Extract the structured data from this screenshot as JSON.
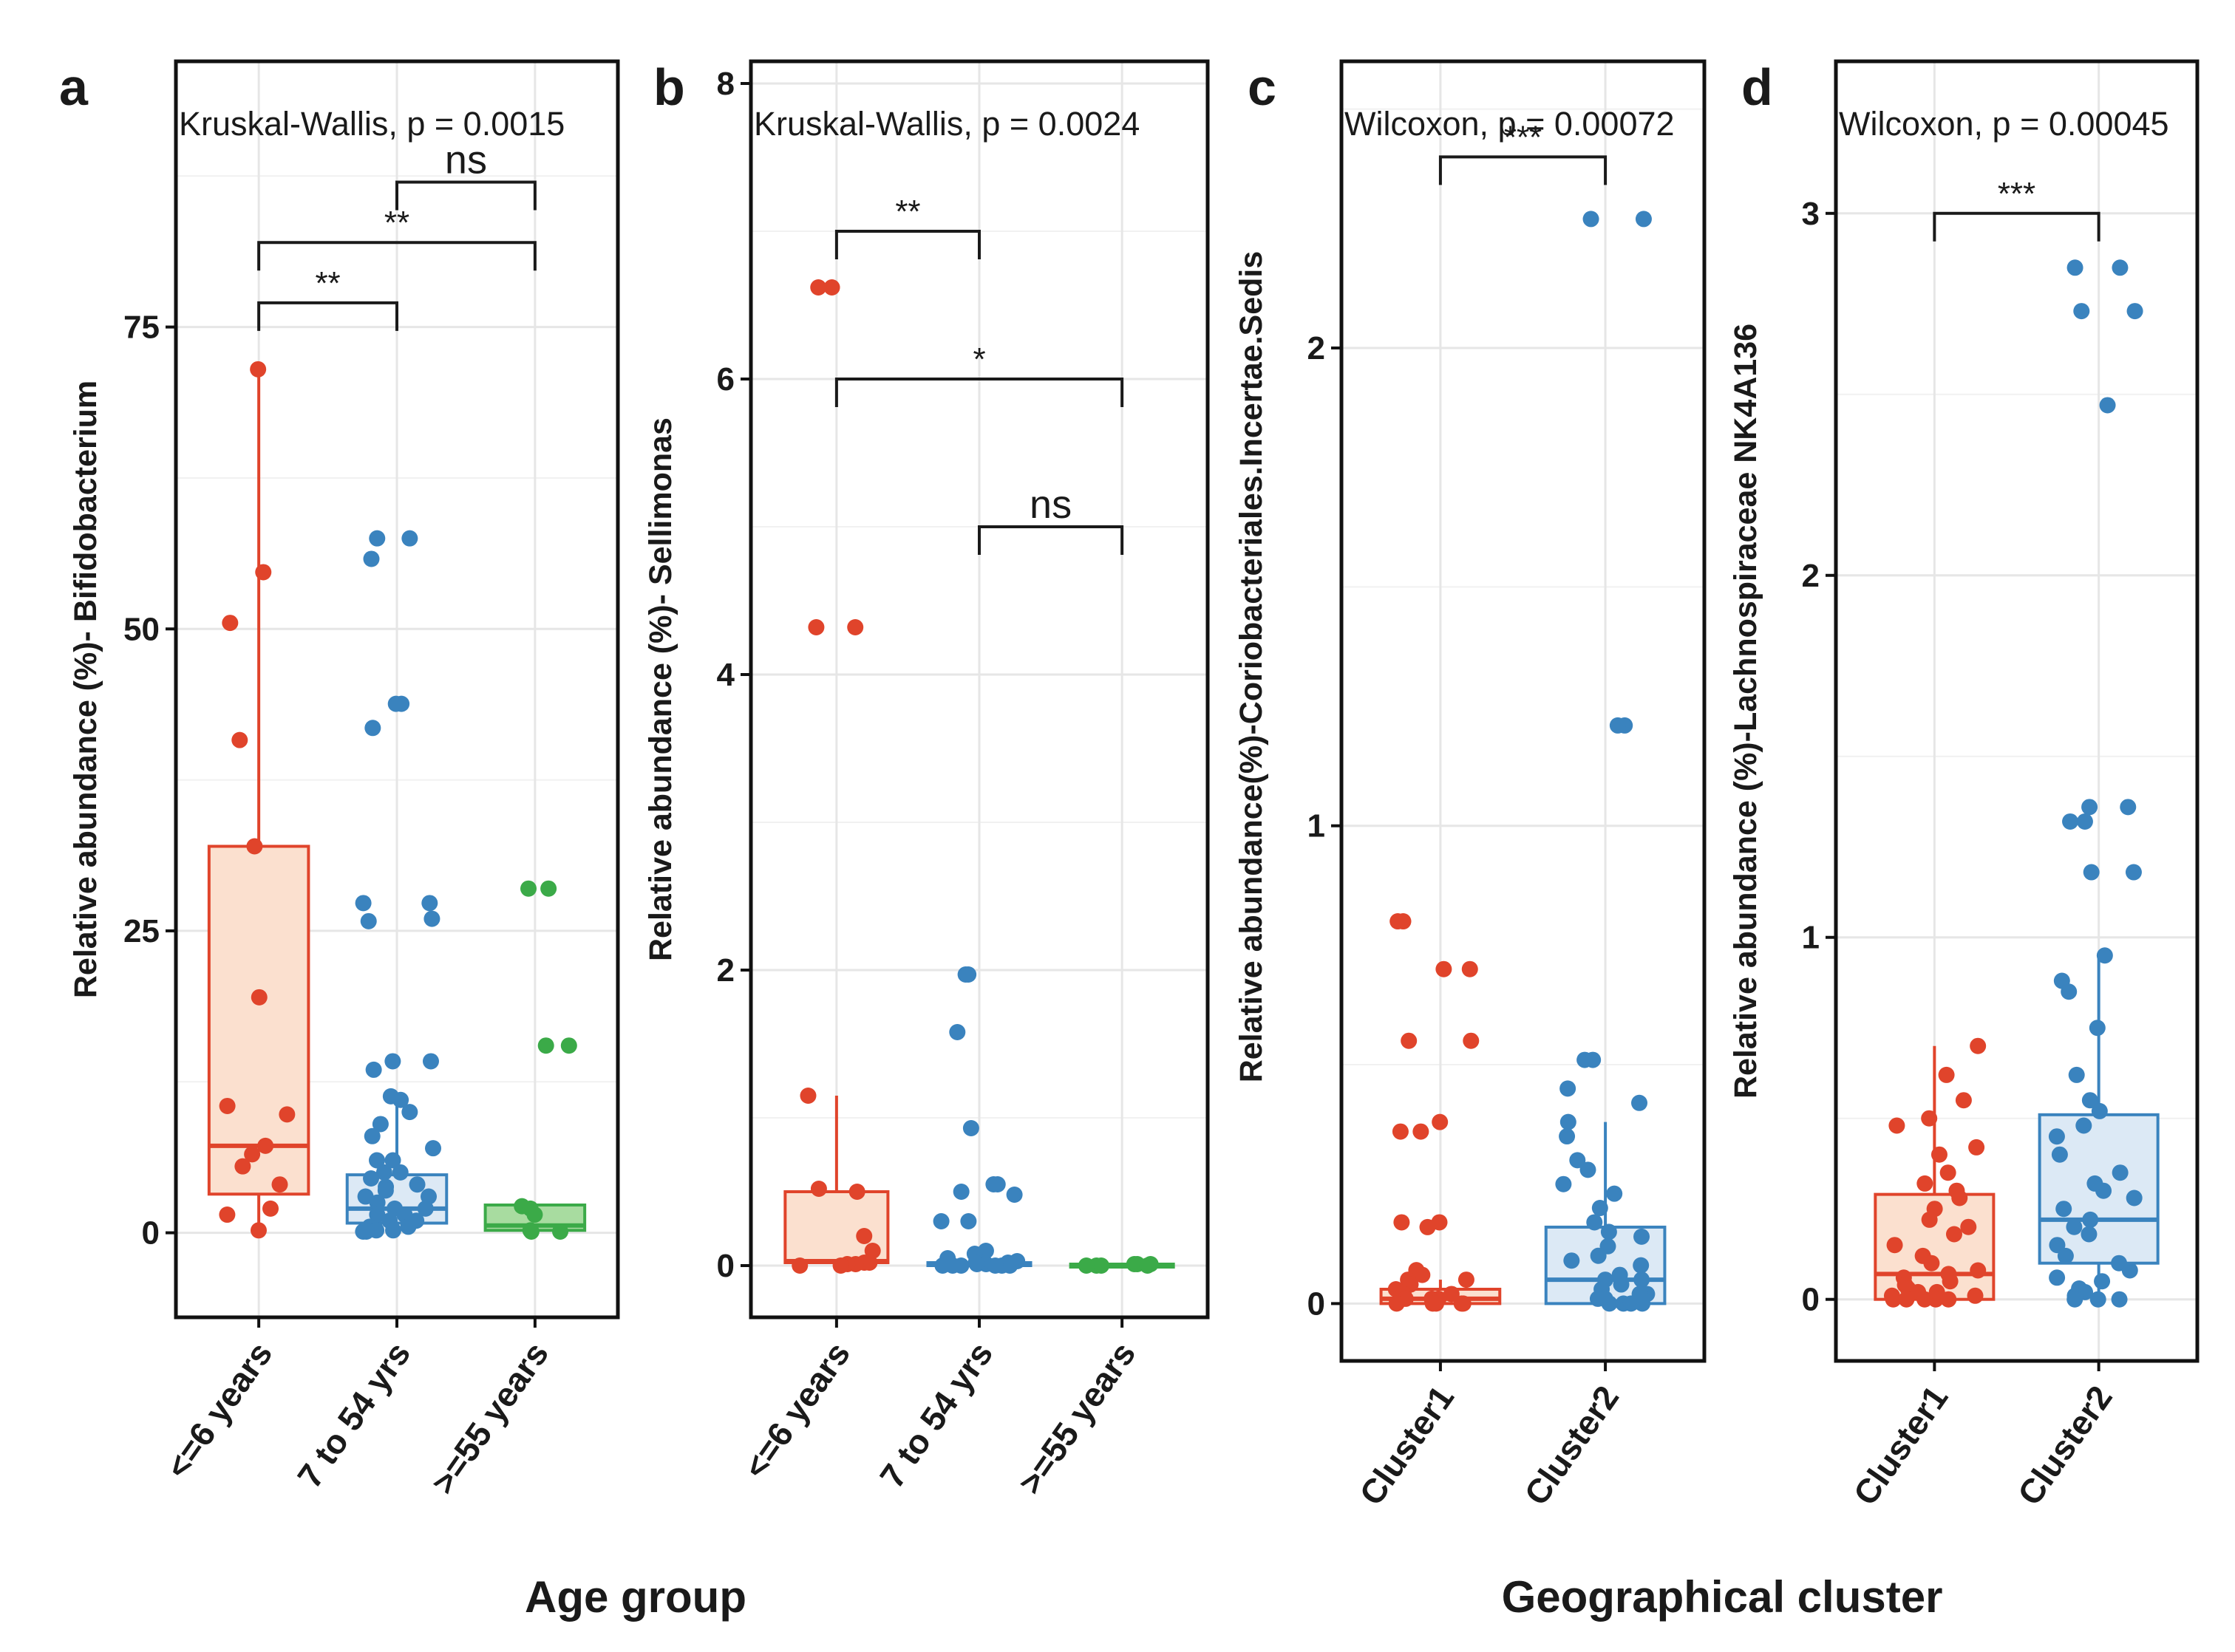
{
  "chart_data": [
    {
      "panel": "a",
      "type": "box",
      "stat_label": "Kruskal-Wallis, p = 0.0015",
      "ylabel": "Relative abundance (%)- Bifidobacterium",
      "ylim": [
        -7,
        97
      ],
      "yticks": [
        0,
        25,
        50,
        75
      ],
      "grid": true,
      "categories": [
        "<=6 years",
        "7 to 54 yrs",
        ">=55 years"
      ],
      "colors": [
        "#E0442B",
        "#3A83BE",
        "#3BAA48"
      ],
      "fills": [
        "#FBE0CF",
        "#DCE9F5",
        "#A8DCA0"
      ],
      "boxes": [
        {
          "q1": 3.2,
          "median": 7.2,
          "q3": 32,
          "whisker_low": 0,
          "whisker_high": 71.5
        },
        {
          "q1": 0.8,
          "median": 2.0,
          "q3": 4.8,
          "whisker_low": 0,
          "whisker_high": 11
        },
        {
          "q1": 0.2,
          "median": 0.6,
          "q3": 2.3,
          "whisker_low": 0,
          "whisker_high": 2.3
        }
      ],
      "points": [
        [
          71.5,
          54.7,
          50.5,
          40.8,
          32.0,
          19.5,
          10.5,
          9.8,
          7.2,
          6.5,
          5.5,
          4.0,
          2.0,
          1.5,
          0.2
        ],
        [
          57.5,
          57.5,
          55.8,
          43.8,
          43.8,
          41.8,
          27.3,
          27.3,
          26.0,
          25.8,
          14.2,
          14.2,
          13.5,
          11.3,
          11.0,
          10.0,
          9.0,
          8.0,
          7.0,
          6.0,
          6.0,
          5.0,
          5.0,
          4.5,
          4.0,
          3.8,
          3.5,
          3.0,
          3.0,
          2.5,
          2.0,
          2.0,
          1.5,
          1.5,
          1.0,
          1.0,
          0.5,
          0.5,
          0.2,
          0.2,
          0.1,
          0.1
        ],
        [
          28.5,
          28.5,
          15.5,
          15.5,
          2.2,
          2.0,
          1.5,
          0.2,
          0.1,
          0.1
        ]
      ],
      "comparisons": [
        {
          "from": 0,
          "to": 1,
          "label": "**",
          "y": 77
        },
        {
          "from": 0,
          "to": 2,
          "label": "**",
          "y": 82
        },
        {
          "from": 1,
          "to": 2,
          "label": "ns",
          "y": 87
        }
      ]
    },
    {
      "panel": "b",
      "type": "box",
      "stat_label": "Kruskal-Wallis, p = 0.0024",
      "ylabel": "Relative abundance (%)- Sellimonas",
      "ylim": [
        -0.35,
        8.15
      ],
      "yticks": [
        0,
        2,
        4,
        6,
        8
      ],
      "grid": true,
      "categories": [
        "<=6 years",
        "7 to 54 yrs",
        ">=55 years"
      ],
      "colors": [
        "#E0442B",
        "#3A83BE",
        "#3BAA48"
      ],
      "fills": [
        "#FBE0CF",
        "#DCE9F5",
        "#A8DCA0"
      ],
      "boxes": [
        {
          "q1": 0.02,
          "median": 0.03,
          "q3": 0.5,
          "whisker_low": 0,
          "whisker_high": 1.15
        },
        {
          "q1": 0.0,
          "median": 0.01,
          "q3": 0.02,
          "whisker_low": 0,
          "whisker_high": 0.02
        },
        {
          "q1": 0.0,
          "median": 0.005,
          "q3": 0.01,
          "whisker_low": 0,
          "whisker_high": 0.01
        }
      ],
      "points": [
        [
          6.62,
          6.62,
          4.32,
          4.32,
          1.15,
          0.52,
          0.5,
          0.2,
          0.1,
          0.02,
          0.02,
          0.01,
          0.01,
          0.0,
          0.0
        ],
        [
          1.97,
          1.97,
          1.58,
          0.93,
          0.55,
          0.55,
          0.5,
          0.48,
          0.3,
          0.3,
          0.1,
          0.08,
          0.05,
          0.03,
          0.02,
          0.02,
          0.01,
          0.01,
          0.01,
          0.0,
          0.0,
          0.0,
          0.0,
          0.0,
          0.0
        ],
        [
          0.01,
          0.01,
          0.01,
          0.0,
          0.0,
          0.0,
          0.0
        ]
      ],
      "comparisons": [
        {
          "from": 0,
          "to": 1,
          "label": "**",
          "y": 7.0
        },
        {
          "from": 0,
          "to": 2,
          "label": "*",
          "y": 6.0
        },
        {
          "from": 1,
          "to": 2,
          "label": "ns",
          "y": 5.0
        }
      ]
    },
    {
      "panel": "c",
      "type": "box",
      "stat_label": "Wilcoxon, p = 0.00072",
      "ylabel": "Relative abundance(%)-Coriobacteriales.Incertae.Sedis",
      "ylim": [
        -0.12,
        2.6
      ],
      "yticks": [
        0,
        1,
        2
      ],
      "grid": true,
      "categories": [
        "Cluster1",
        "Cluster2"
      ],
      "colors": [
        "#E0442B",
        "#3A83BE"
      ],
      "fills": [
        "#FBE0CF",
        "#DCE9F5"
      ],
      "boxes": [
        {
          "q1": 0.0,
          "median": 0.01,
          "q3": 0.03,
          "whisker_low": 0,
          "whisker_high": 0.05
        },
        {
          "q1": 0.0,
          "median": 0.05,
          "q3": 0.16,
          "whisker_low": 0,
          "whisker_high": 0.38
        }
      ],
      "points": [
        [
          0.8,
          0.8,
          0.7,
          0.7,
          0.55,
          0.55,
          0.38,
          0.36,
          0.36,
          0.17,
          0.17,
          0.16,
          0.07,
          0.06,
          0.05,
          0.05,
          0.04,
          0.03,
          0.02,
          0.02,
          0.01,
          0.01,
          0.01,
          0.0,
          0.0,
          0.0,
          0.0,
          0.0
        ],
        [
          2.27,
          2.27,
          1.21,
          1.21,
          0.51,
          0.51,
          0.45,
          0.42,
          0.38,
          0.35,
          0.3,
          0.28,
          0.25,
          0.23,
          0.2,
          0.17,
          0.15,
          0.14,
          0.12,
          0.1,
          0.09,
          0.08,
          0.06,
          0.05,
          0.05,
          0.04,
          0.03,
          0.02,
          0.02,
          0.01,
          0.01,
          0.0,
          0.0,
          0.0,
          0.0
        ]
      ],
      "comparisons": [
        {
          "from": 0,
          "to": 1,
          "label": "***",
          "y": 2.4
        }
      ]
    },
    {
      "panel": "d",
      "type": "box",
      "stat_label": "Wilcoxon, p = 0.00045",
      "ylabel": "Relative abundance (%)-Lachnospiraceae NK4A136",
      "ylim": [
        -0.17,
        3.42
      ],
      "yticks": [
        0,
        1,
        2,
        3
      ],
      "grid": true,
      "categories": [
        "Cluster1",
        "Cluster2"
      ],
      "colors": [
        "#E0442B",
        "#3A83BE"
      ],
      "fills": [
        "#FBE0CF",
        "#DCE9F5"
      ],
      "boxes": [
        {
          "q1": 0.0,
          "median": 0.07,
          "q3": 0.29,
          "whisker_low": 0,
          "whisker_high": 0.7
        },
        {
          "q1": 0.1,
          "median": 0.22,
          "q3": 0.51,
          "whisker_low": 0,
          "whisker_high": 0.95
        }
      ],
      "points": [
        [
          0.7,
          0.62,
          0.55,
          0.5,
          0.48,
          0.42,
          0.4,
          0.35,
          0.32,
          0.3,
          0.28,
          0.25,
          0.22,
          0.2,
          0.18,
          0.15,
          0.12,
          0.1,
          0.08,
          0.07,
          0.06,
          0.05,
          0.04,
          0.03,
          0.02,
          0.02,
          0.01,
          0.01,
          0.0,
          0.0,
          0.0,
          0.0,
          0.0
        ],
        [
          2.85,
          2.85,
          2.73,
          2.73,
          2.47,
          1.36,
          1.36,
          1.32,
          1.32,
          1.18,
          1.18,
          0.95,
          0.88,
          0.85,
          0.75,
          0.62,
          0.55,
          0.52,
          0.48,
          0.45,
          0.4,
          0.35,
          0.32,
          0.3,
          0.28,
          0.25,
          0.22,
          0.2,
          0.18,
          0.15,
          0.12,
          0.1,
          0.08,
          0.06,
          0.05,
          0.03,
          0.02,
          0.01,
          0.0,
          0.0,
          0.0
        ]
      ],
      "comparisons": [
        {
          "from": 0,
          "to": 1,
          "label": "***",
          "y": 3.0
        }
      ]
    }
  ],
  "axis_titles": {
    "age_group": "Age group",
    "geographical_cluster": "Geographical cluster"
  }
}
